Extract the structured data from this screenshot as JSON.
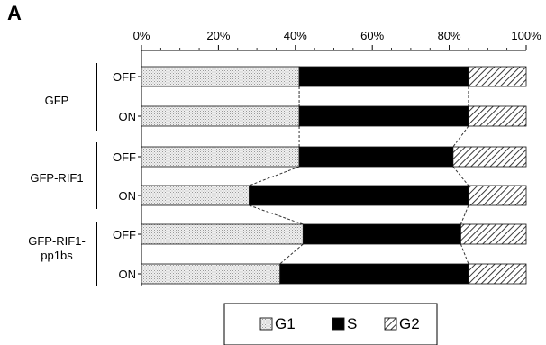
{
  "panel_label": "A",
  "chart_data": {
    "type": "bar",
    "orientation": "horizontal",
    "stacked": true,
    "percent": true,
    "x_ticks": [
      "0%",
      "20%",
      "40%",
      "60%",
      "80%",
      "100%"
    ],
    "xlim": [
      0,
      100
    ],
    "groups": [
      {
        "name": "GFP",
        "name_lines": [
          "GFP"
        ]
      },
      {
        "name": "GFP-RIF1",
        "name_lines": [
          "GFP-RIF1"
        ]
      },
      {
        "name": "GFP-RIF1-pp1bs",
        "name_lines": [
          "GFP-RIF1-",
          "pp1bs"
        ]
      }
    ],
    "categories": [
      "GFP OFF",
      "GFP ON",
      "GFP-RIF1 OFF",
      "GFP-RIF1 ON",
      "GFP-RIF1-pp1bs OFF",
      "GFP-RIF1-pp1bs ON"
    ],
    "row_labels": [
      "OFF",
      "ON",
      "OFF",
      "ON",
      "OFF",
      "ON"
    ],
    "series": [
      {
        "name": "G1",
        "values": [
          41,
          41,
          41,
          28,
          42,
          36
        ],
        "color": "#e3e3e3",
        "fill": "dotted"
      },
      {
        "name": "S",
        "values": [
          44,
          44,
          40,
          57,
          41,
          49
        ],
        "color": "#000000",
        "fill": "solid"
      },
      {
        "name": "G2",
        "values": [
          15,
          15,
          19,
          15,
          17,
          15
        ],
        "color": "#ffffff",
        "fill": "hatched"
      }
    ],
    "dashed_connectors": true,
    "grid": false,
    "legend_position": "bottom",
    "title": "",
    "xlabel": "",
    "ylabel": ""
  }
}
